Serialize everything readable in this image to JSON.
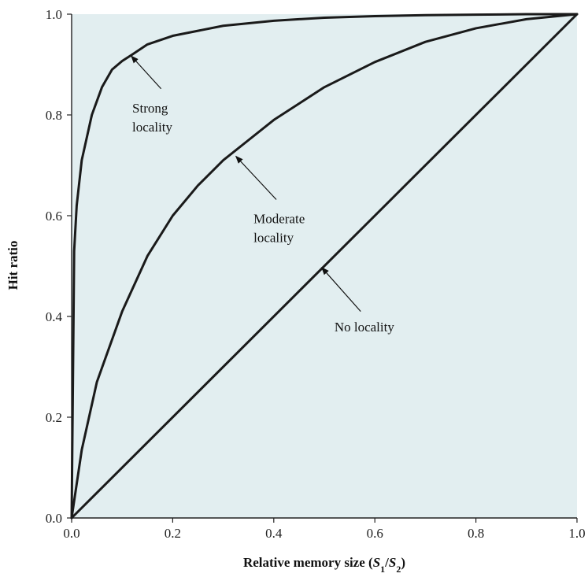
{
  "chart_data": {
    "type": "line",
    "xlabel_main": "Relative memory size (",
    "xlabel_s1": "S",
    "xlabel_s1_sub": "1",
    "xlabel_slash": "/",
    "xlabel_s2": "S",
    "xlabel_s2_sub": "2",
    "xlabel_close": ")",
    "ylabel": "Hit ratio",
    "xlim": [
      0,
      1
    ],
    "ylim": [
      0,
      1
    ],
    "xticks": [
      "0.0",
      "0.2",
      "0.4",
      "0.6",
      "0.8",
      "1.0"
    ],
    "yticks": [
      "0.0",
      "0.2",
      "0.4",
      "0.6",
      "0.8",
      "1.0"
    ],
    "plot_background": "#e2eef0",
    "line_color": "#1a1a1a",
    "series": [
      {
        "key": "strong",
        "x": [
          0,
          0.005,
          0.01,
          0.02,
          0.04,
          0.06,
          0.08,
          0.1,
          0.12,
          0.15,
          0.2,
          0.3,
          0.4,
          0.5,
          0.6,
          0.7,
          0.8,
          0.9,
          1.0
        ],
        "y": [
          0,
          0.53,
          0.62,
          0.71,
          0.8,
          0.855,
          0.89,
          0.907,
          0.92,
          0.94,
          0.957,
          0.977,
          0.987,
          0.993,
          0.996,
          0.998,
          0.999,
          1.0,
          1.0
        ]
      },
      {
        "key": "moderate",
        "x": [
          0,
          0.02,
          0.05,
          0.1,
          0.15,
          0.2,
          0.25,
          0.3,
          0.35,
          0.4,
          0.5,
          0.6,
          0.7,
          0.8,
          0.9,
          1.0
        ],
        "y": [
          0,
          0.135,
          0.27,
          0.41,
          0.52,
          0.6,
          0.66,
          0.71,
          0.75,
          0.79,
          0.855,
          0.905,
          0.945,
          0.972,
          0.99,
          1.0
        ]
      },
      {
        "key": "none",
        "x": [
          0,
          1.0
        ],
        "y": [
          0,
          1.0
        ]
      }
    ],
    "annotations": [
      {
        "key": "strong",
        "lines": [
          "Strong",
          "locality"
        ],
        "text_at": [
          0.12,
          0.805
        ],
        "arrow_from": [
          0.177,
          0.852
        ],
        "arrow_to": [
          0.118,
          0.917
        ]
      },
      {
        "key": "moderate",
        "lines": [
          "Moderate",
          "locality"
        ],
        "text_at": [
          0.36,
          0.585
        ],
        "arrow_from": [
          0.405,
          0.632
        ],
        "arrow_to": [
          0.325,
          0.718
        ]
      },
      {
        "key": "none",
        "lines": [
          "No locality"
        ],
        "text_at": [
          0.52,
          0.37
        ],
        "arrow_from": [
          0.572,
          0.41
        ],
        "arrow_to": [
          0.495,
          0.497
        ]
      }
    ]
  }
}
